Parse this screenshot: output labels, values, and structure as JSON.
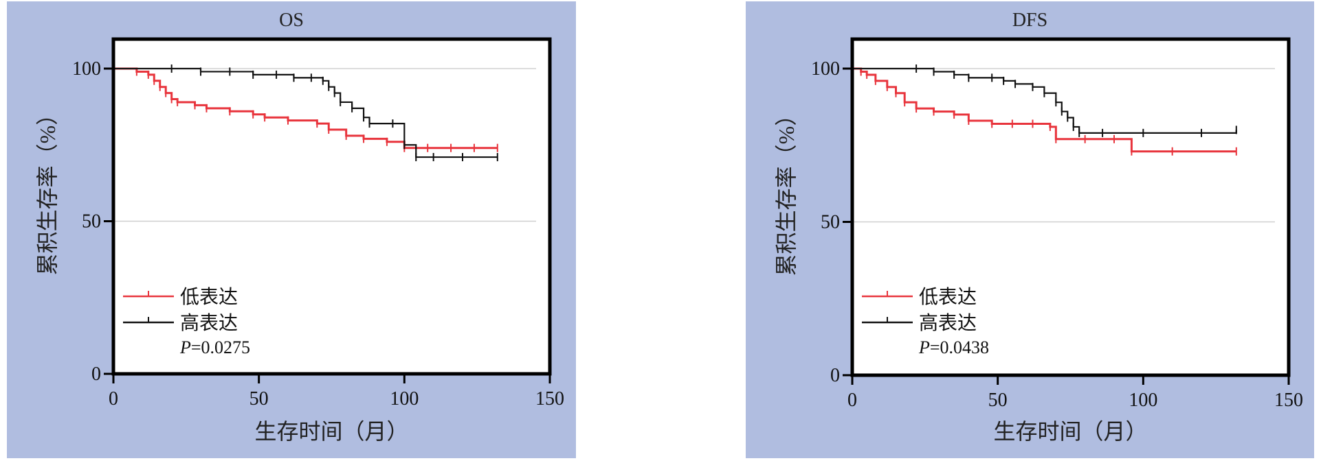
{
  "colors": {
    "background": "#b0bde0",
    "low": "#e8343c",
    "high": "#111111",
    "grid": "#d0d0d0"
  },
  "chart_data": [
    {
      "type": "line",
      "title": "OS",
      "xlabel": "生存时间（月）",
      "ylabel": "累积生存率（%）",
      "xlim": [
        0,
        150
      ],
      "ylim": [
        0,
        100
      ],
      "xticks": [
        "0",
        "50",
        "100",
        "150"
      ],
      "yticks": [
        "0",
        "50",
        "100"
      ],
      "grid": true,
      "legend_position": "bottom-left",
      "p_label": "P",
      "p_value": "=0.0275",
      "series": [
        {
          "name": "低表达",
          "color": "#e8343c",
          "x": [
            0,
            8,
            12,
            14,
            16,
            18,
            20,
            22,
            28,
            32,
            40,
            48,
            52,
            60,
            70,
            74,
            80,
            86,
            94,
            100,
            108,
            116,
            124,
            132
          ],
          "y": [
            100,
            99,
            98,
            96,
            94,
            92,
            90,
            89,
            88,
            87,
            86,
            85,
            84,
            83,
            82,
            80,
            78,
            77,
            76,
            74,
            74,
            74,
            74,
            74
          ]
        },
        {
          "name": "高表达",
          "color": "#111111",
          "x": [
            0,
            20,
            30,
            40,
            48,
            56,
            62,
            68,
            72,
            74,
            76,
            78,
            82,
            86,
            88,
            96,
            100,
            104,
            110,
            120,
            132
          ],
          "y": [
            100,
            100,
            99,
            99,
            98,
            98,
            97,
            97,
            96,
            94,
            92,
            89,
            87,
            84,
            82,
            82,
            75,
            71,
            71,
            71,
            71
          ]
        }
      ]
    },
    {
      "type": "line",
      "title": "DFS",
      "xlabel": "生存时间（月）",
      "ylabel": "累积生存率（%）",
      "xlim": [
        0,
        150
      ],
      "ylim": [
        0,
        100
      ],
      "xticks": [
        "0",
        "50",
        "100",
        "150"
      ],
      "yticks": [
        "0",
        "50",
        "100"
      ],
      "grid": true,
      "legend_position": "bottom-left",
      "p_label": "P",
      "p_value": "=0.0438",
      "series": [
        {
          "name": "低表达",
          "color": "#e8343c",
          "x": [
            0,
            3,
            5,
            8,
            12,
            15,
            18,
            22,
            28,
            35,
            40,
            48,
            55,
            62,
            68,
            70,
            80,
            90,
            96,
            110,
            132
          ],
          "y": [
            100,
            99,
            98,
            96,
            94,
            92,
            89,
            87,
            86,
            85,
            83,
            82,
            82,
            82,
            81,
            77,
            77,
            77,
            73,
            73,
            73
          ]
        },
        {
          "name": "高表达",
          "color": "#111111",
          "x": [
            0,
            22,
            28,
            35,
            40,
            48,
            52,
            56,
            62,
            66,
            70,
            72,
            74,
            76,
            78,
            86,
            100,
            120,
            132
          ],
          "y": [
            100,
            100,
            99,
            98,
            97,
            97,
            96,
            95,
            94,
            92,
            89,
            86,
            84,
            81,
            79,
            79,
            79,
            79,
            80
          ]
        }
      ]
    }
  ]
}
